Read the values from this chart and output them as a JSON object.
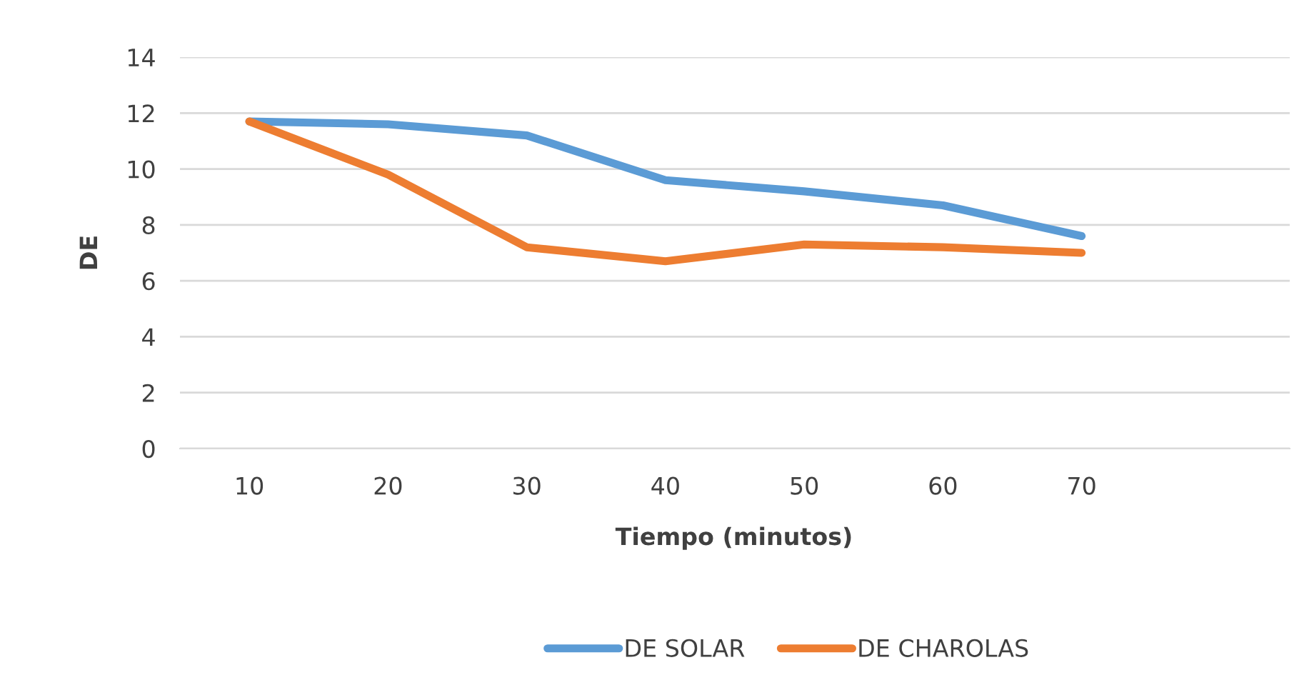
{
  "chart_data": {
    "type": "line",
    "xlabel": "Tiempo (minutos)",
    "ylabel": "DE",
    "categories": [
      "10",
      "20",
      "30",
      "40",
      "50",
      "60",
      "70",
      null
    ],
    "series": [
      {
        "name": "DE SOLAR",
        "color": "#5b9bd5",
        "values": [
          11.7,
          11.6,
          11.2,
          9.6,
          9.2,
          8.7,
          7.6,
          null
        ]
      },
      {
        "name": "DE CHAROLAS",
        "color": "#ed7d31",
        "values": [
          11.7,
          9.8,
          7.2,
          6.7,
          7.3,
          7.2,
          7.0,
          null
        ]
      }
    ],
    "ylim": [
      0,
      14
    ],
    "yticks": [
      0,
      2,
      4,
      6,
      8,
      10,
      12,
      14
    ],
    "grid": "y",
    "legend": "bottom",
    "marker": "none",
    "line_style": "solid"
  }
}
